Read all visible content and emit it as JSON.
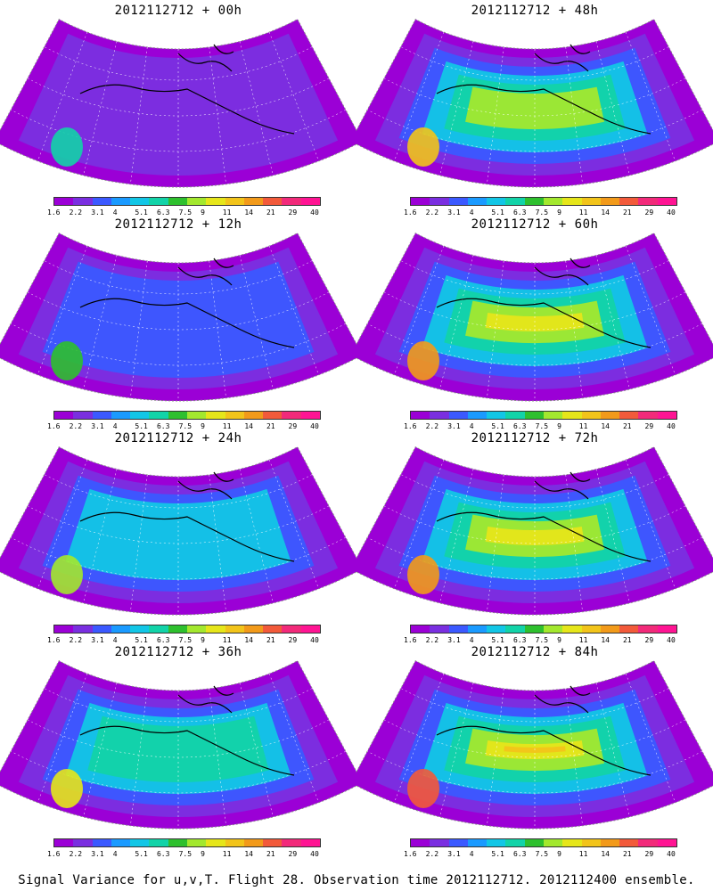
{
  "panels": [
    {
      "title": "2012112712 + 00h",
      "level": 1
    },
    {
      "title": "2012112712 + 48h",
      "level": 5
    },
    {
      "title": "2012112712 + 12h",
      "level": 2
    },
    {
      "title": "2012112712 + 60h",
      "level": 6
    },
    {
      "title": "2012112712 + 24h",
      "level": 3
    },
    {
      "title": "2012112712 + 72h",
      "level": 6
    },
    {
      "title": "2012112712 + 36h",
      "level": 4
    },
    {
      "title": "2012112712 + 84h",
      "level": 7
    }
  ],
  "colorbar": {
    "labels": [
      "1.6",
      "2.2",
      "3.1",
      "4",
      "5.1",
      "6.3",
      "7.5",
      "9",
      "11",
      "14",
      "21",
      "29",
      "40"
    ],
    "colors": [
      "#9b00d6",
      "#7a2fe0",
      "#3b59ff",
      "#1a9aff",
      "#12c6e6",
      "#12d3a8",
      "#2ec02e",
      "#a3e82e",
      "#e6e61a",
      "#f2c41a",
      "#f29a1a",
      "#f25a3a",
      "#f22a7a",
      "#ff1493"
    ]
  },
  "caption": "Signal Variance for u,v,T. Flight 28. Observation time 2012112712. 2012112400 ensemble."
}
